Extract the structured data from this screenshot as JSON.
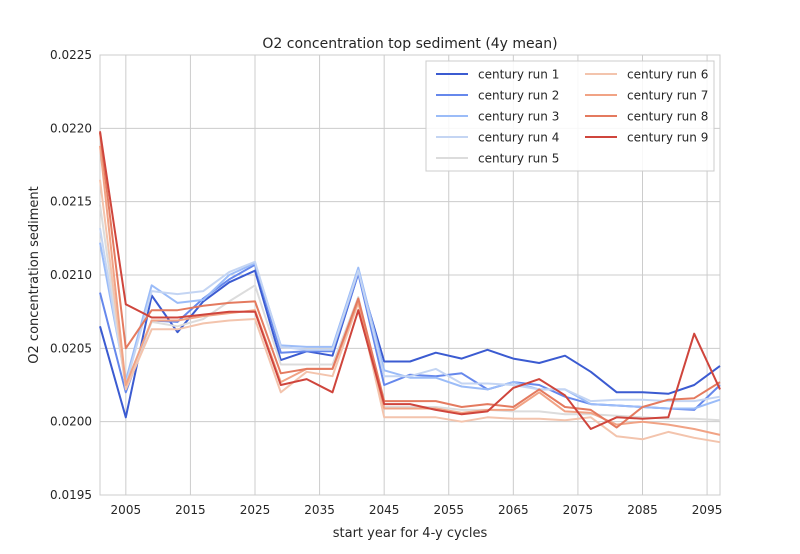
{
  "chart_data": {
    "type": "line",
    "title": "O2 concentration top sediment (4y mean)",
    "xlabel": "start year for 4-y cycles",
    "ylabel": "O2 concentration sediment",
    "xlim": [
      2001,
      2097
    ],
    "ylim": [
      0.0195,
      0.0225
    ],
    "xticks": [
      2005,
      2015,
      2025,
      2035,
      2045,
      2055,
      2065,
      2075,
      2085,
      2095
    ],
    "yticks": [
      "0.0195",
      "0.0200",
      "0.0205",
      "0.0210",
      "0.0215",
      "0.0220",
      "0.0225"
    ],
    "grid": true,
    "legend_position": "top-right",
    "x": [
      2001,
      2005,
      2009,
      2013,
      2017,
      2021,
      2025,
      2029,
      2033,
      2037,
      2041,
      2045,
      2049,
      2053,
      2057,
      2061,
      2065,
      2069,
      2073,
      2077,
      2081,
      2085,
      2089,
      2093,
      2097
    ],
    "series": [
      {
        "name": "century run 1",
        "color": "#3b5bd1",
        "values": [
          0.02065,
          0.02003,
          0.02086,
          0.02061,
          0.02082,
          0.02095,
          0.02103,
          0.02042,
          0.02048,
          0.02045,
          0.02101,
          0.02041,
          0.02041,
          0.02047,
          0.02043,
          0.02049,
          0.02043,
          0.0204,
          0.02045,
          0.02034,
          0.0202,
          0.0202,
          0.02019,
          0.02025,
          0.02038
        ]
      },
      {
        "name": "century run 2",
        "color": "#6688ec",
        "values": [
          0.02088,
          0.0202,
          0.02069,
          0.02068,
          0.02084,
          0.02097,
          0.02107,
          0.02047,
          0.02048,
          0.02048,
          0.02101,
          0.02025,
          0.02032,
          0.02031,
          0.02033,
          0.02022,
          0.02027,
          0.02025,
          0.02017,
          0.02012,
          0.02011,
          0.0201,
          0.02009,
          0.02008,
          0.02025
        ]
      },
      {
        "name": "century run 3",
        "color": "#9bbcf8",
        "values": [
          0.02122,
          0.02028,
          0.02093,
          0.02081,
          0.02083,
          0.021,
          0.02108,
          0.02052,
          0.02051,
          0.02051,
          0.02105,
          0.02035,
          0.0203,
          0.0203,
          0.02024,
          0.02022,
          0.02027,
          0.02022,
          0.02022,
          0.02012,
          0.02011,
          0.0201,
          0.02009,
          0.02009,
          0.02015
        ]
      },
      {
        "name": "century run 4",
        "color": "#c4d5f3",
        "values": [
          0.02132,
          0.02025,
          0.02089,
          0.02087,
          0.02089,
          0.02102,
          0.02109,
          0.02051,
          0.02049,
          0.02049,
          0.02103,
          0.02031,
          0.02031,
          0.02036,
          0.02026,
          0.02026,
          0.02025,
          0.02022,
          0.02022,
          0.02014,
          0.02015,
          0.02015,
          0.02014,
          0.02014,
          0.02017
        ]
      },
      {
        "name": "century run 5",
        "color": "#dcdcdc",
        "values": [
          0.02148,
          0.02023,
          0.02068,
          0.02065,
          0.0207,
          0.02082,
          0.02093,
          0.02039,
          0.02039,
          0.02039,
          0.02085,
          0.0201,
          0.0201,
          0.0201,
          0.02008,
          0.02008,
          0.02007,
          0.02007,
          0.02005,
          0.02005,
          0.02004,
          0.02003,
          0.02002,
          0.02002,
          0.02001
        ]
      },
      {
        "name": "century run 6",
        "color": "#f3c4ad",
        "values": [
          0.02165,
          0.02022,
          0.02063,
          0.02063,
          0.02067,
          0.02069,
          0.0207,
          0.0202,
          0.02034,
          0.02031,
          0.02081,
          0.02003,
          0.02003,
          0.02003,
          0.02,
          0.02003,
          0.02002,
          0.02002,
          0.02001,
          0.02003,
          0.0199,
          0.01988,
          0.01993,
          0.01989,
          0.01986
        ]
      },
      {
        "name": "century run 7",
        "color": "#f1a385",
        "values": [
          0.02188,
          0.02025,
          0.02069,
          0.02069,
          0.02072,
          0.02074,
          0.02076,
          0.02027,
          0.02036,
          0.02036,
          0.02082,
          0.02009,
          0.02009,
          0.02009,
          0.02006,
          0.02008,
          0.02008,
          0.0202,
          0.02007,
          0.02006,
          0.01998,
          0.02,
          0.01998,
          0.01995,
          0.01991
        ]
      },
      {
        "name": "century run 8",
        "color": "#e47a5f",
        "values": [
          0.02197,
          0.0205,
          0.02076,
          0.02076,
          0.02079,
          0.02081,
          0.02082,
          0.02033,
          0.02036,
          0.02036,
          0.02084,
          0.02014,
          0.02014,
          0.02014,
          0.0201,
          0.02012,
          0.0201,
          0.02022,
          0.0201,
          0.02008,
          0.01996,
          0.0201,
          0.02015,
          0.02016,
          0.02027
        ]
      },
      {
        "name": "century run 9",
        "color": "#cf453c",
        "values": [
          0.02198,
          0.0208,
          0.02071,
          0.02071,
          0.02073,
          0.02075,
          0.02075,
          0.02025,
          0.02029,
          0.0202,
          0.02076,
          0.02012,
          0.02012,
          0.02008,
          0.02005,
          0.02007,
          0.02023,
          0.02029,
          0.02018,
          0.01995,
          0.02003,
          0.02002,
          0.02003,
          0.0206,
          0.02022
        ]
      }
    ]
  }
}
